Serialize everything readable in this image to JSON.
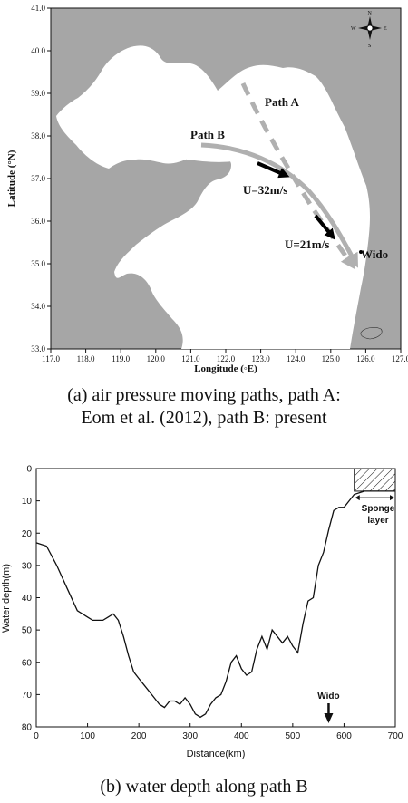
{
  "chart_data": [
    {
      "type": "map",
      "xlabel": "Longitude (◦E)",
      "ylabel": "Latitude (°N)",
      "xlim": [
        117.0,
        127.0
      ],
      "ylim": [
        33.0,
        41.0
      ],
      "xticks": [
        "117.0",
        "118.0",
        "119.0",
        "120.0",
        "121.0",
        "122.0",
        "123.0",
        "124.0",
        "125.0",
        "126.0",
        "127.0"
      ],
      "yticks": [
        "33.0",
        "34.0",
        "35.0",
        "36.0",
        "37.0",
        "38.0",
        "39.0",
        "40.0",
        "41.0"
      ],
      "annotations": {
        "path_a": "Path A",
        "path_b": "Path B",
        "u1": "U=32m/s",
        "u2": "U=21m/s",
        "wido": "Wido"
      },
      "compass": {
        "n": "N",
        "s": "S",
        "e": "E",
        "w": "W"
      },
      "colors": {
        "land": "#a6a6a6",
        "sea": "#ffffff",
        "path": "#b0b0b0",
        "arrow": "#000000"
      }
    },
    {
      "type": "line",
      "xlabel": "Distance(km)",
      "ylabel": "Water depth(m)",
      "xlim": [
        0,
        700
      ],
      "ylim": [
        0,
        80
      ],
      "xticks": [
        "0",
        "100",
        "200",
        "300",
        "400",
        "500",
        "600",
        "700"
      ],
      "yticks": [
        "0",
        "10",
        "20",
        "30",
        "40",
        "50",
        "60",
        "70",
        "80"
      ],
      "annotations": {
        "sponge_line1": "Sponge",
        "sponge_line2": "layer",
        "wido": "Wido"
      },
      "wido_km": 570,
      "sponge_range_km": [
        620,
        700
      ],
      "x": [
        0,
        20,
        40,
        60,
        80,
        100,
        110,
        120,
        130,
        140,
        150,
        160,
        170,
        180,
        190,
        200,
        210,
        220,
        230,
        240,
        250,
        260,
        270,
        280,
        290,
        300,
        310,
        320,
        330,
        340,
        350,
        360,
        370,
        380,
        390,
        400,
        410,
        420,
        430,
        440,
        450,
        460,
        470,
        480,
        490,
        500,
        510,
        520,
        530,
        540,
        550,
        560,
        570,
        580,
        590,
        600,
        610,
        620,
        640,
        660,
        700
      ],
      "y": [
        23,
        24,
        30,
        37,
        44,
        46,
        47,
        47,
        47,
        46,
        45,
        47,
        52,
        58,
        63,
        65,
        67,
        69,
        71,
        73,
        74,
        72,
        72,
        73,
        71,
        73,
        76,
        77,
        76,
        73,
        71,
        70,
        66,
        60,
        58,
        62,
        64,
        63,
        56,
        52,
        56,
        50,
        52,
        54,
        52,
        55,
        57,
        48,
        41,
        40,
        30,
        26,
        19,
        13,
        12,
        12,
        10,
        8,
        7,
        7,
        7
      ]
    }
  ],
  "captions": {
    "a_line1": "(a) air pressure moving paths, path A:",
    "a_line2": "Eom et al. (2012), path B: present",
    "b": "(b) water depth along path B"
  }
}
